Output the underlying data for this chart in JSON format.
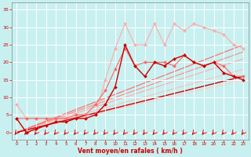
{
  "background_color": "#c8f0f0",
  "grid_color": "#ffffff",
  "xlabel": "Vent moyen/en rafales ( km/h )",
  "xlabel_color": "#cc0000",
  "tick_color": "#cc0000",
  "xlim": [
    -0.5,
    23.5
  ],
  "ylim": [
    -2,
    37
  ],
  "yticks": [
    0,
    5,
    10,
    15,
    20,
    25,
    30,
    35
  ],
  "xticks": [
    0,
    1,
    2,
    3,
    4,
    5,
    6,
    7,
    8,
    9,
    10,
    11,
    12,
    13,
    14,
    15,
    16,
    17,
    18,
    19,
    20,
    21,
    22,
    23
  ],
  "line1": {
    "x": [
      0,
      1,
      2,
      3,
      4,
      5,
      6,
      7,
      8,
      9,
      10,
      11,
      12,
      13,
      14,
      15,
      16,
      17,
      18,
      19,
      20,
      21,
      22,
      23
    ],
    "y": [
      8,
      4,
      4,
      4,
      4,
      4,
      5,
      5,
      5,
      15,
      24,
      31,
      25,
      25,
      31,
      25,
      31,
      29,
      31,
      30,
      29,
      28,
      25,
      24
    ],
    "color": "#ffaaaa",
    "linewidth": 0.8
  },
  "line2": {
    "x": [
      0,
      1,
      2,
      3,
      4,
      5,
      6,
      7,
      8,
      9,
      10,
      11,
      12,
      13,
      14,
      15,
      16,
      17,
      18,
      19,
      20,
      21,
      22,
      23
    ],
    "y": [
      4,
      4,
      4,
      4,
      4,
      4,
      5,
      5,
      8,
      12,
      18,
      24,
      19,
      20,
      20,
      20,
      19,
      22,
      20,
      19,
      20,
      19,
      16,
      16
    ],
    "color": "#ff6666",
    "linewidth": 0.8
  },
  "line3": {
    "x": [
      0,
      1,
      2,
      3,
      4,
      5,
      6,
      7,
      8,
      9,
      10,
      11,
      12,
      13,
      14,
      15,
      16,
      17,
      18,
      19,
      20,
      21,
      22,
      23
    ],
    "y": [
      4,
      0,
      1,
      2,
      3,
      3,
      4,
      4,
      5,
      8,
      13,
      25,
      19,
      16,
      20,
      19,
      21,
      22,
      20,
      19,
      20,
      17,
      16,
      15
    ],
    "color": "#cc0000",
    "linewidth": 1.0
  },
  "ref_lines": [
    {
      "x": [
        0,
        23
      ],
      "y": [
        0,
        15
      ],
      "color": "#ffcccc",
      "lw": 0.8
    },
    {
      "x": [
        0,
        23
      ],
      "y": [
        0,
        18
      ],
      "color": "#ffbbbb",
      "lw": 0.8
    },
    {
      "x": [
        0,
        23
      ],
      "y": [
        0,
        21
      ],
      "color": "#ffaaaa",
      "lw": 0.8
    },
    {
      "x": [
        0,
        23
      ],
      "y": [
        0,
        23
      ],
      "color": "#ff8888",
      "lw": 0.8
    },
    {
      "x": [
        0,
        23
      ],
      "y": [
        0,
        25
      ],
      "color": "#ff6666",
      "lw": 0.8
    },
    {
      "x": [
        0,
        23
      ],
      "y": [
        0,
        16
      ],
      "color": "#cc0000",
      "lw": 1.0
    }
  ]
}
